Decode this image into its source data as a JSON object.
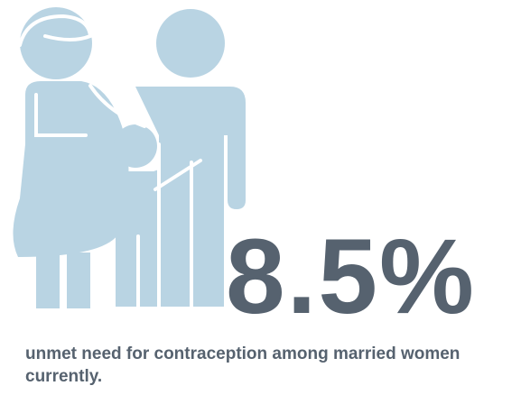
{
  "stat": "8.5%",
  "caption": "unmet need for contraception among married women currently."
}
